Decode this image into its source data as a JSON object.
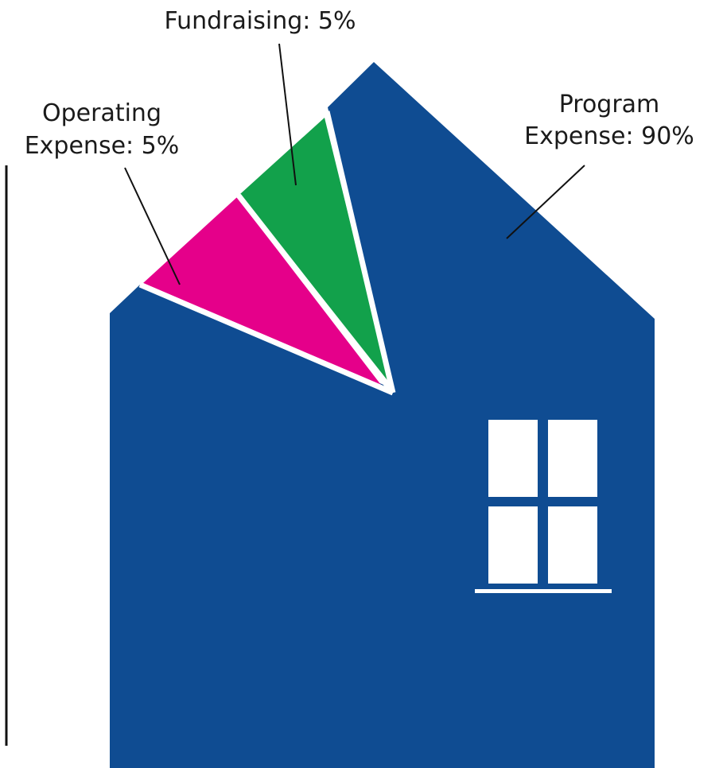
{
  "chart_data": {
    "type": "pie",
    "title": "",
    "categories": [
      "Operating Expense",
      "Fundraising",
      "Program Expense"
    ],
    "values": [
      5,
      5,
      90
    ],
    "units": "%",
    "labels": [
      {
        "line1": "Operating",
        "line2": "Expense: 5%"
      },
      {
        "line1": "Fundraising: 5%",
        "line2": ""
      },
      {
        "line1": "Program",
        "line2": "Expense: 90%"
      }
    ],
    "colors": {
      "Operating Expense": "#e5008a",
      "Fundraising": "#12a14b",
      "Program Expense": "#0f4c92",
      "window": "#ffffff",
      "separator": "#ffffff"
    },
    "shape": "house"
  }
}
